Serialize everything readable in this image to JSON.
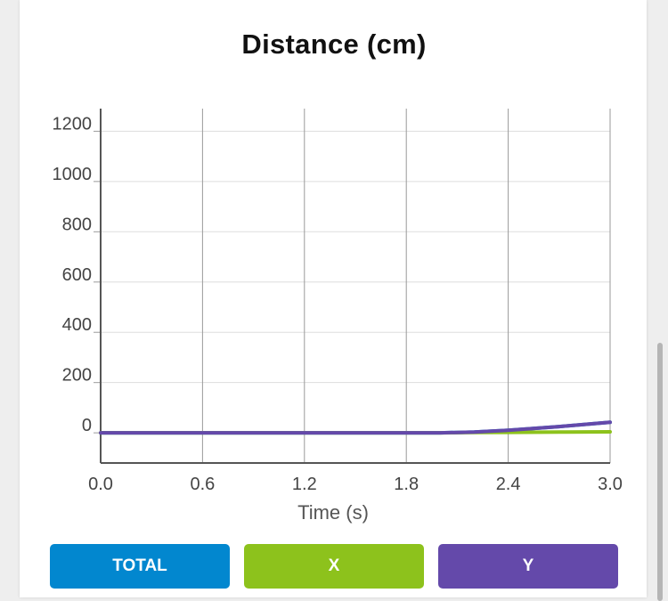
{
  "chart_data": {
    "type": "line",
    "title": "Distance (cm)",
    "xlabel": "Time (s)",
    "ylabel": "",
    "x_ticks": [
      "0.0",
      "0.6",
      "1.2",
      "1.8",
      "2.4",
      "3.0"
    ],
    "y_ticks": [
      "0",
      "200",
      "400",
      "600",
      "800",
      "1000",
      "1200"
    ],
    "xlim": [
      0,
      3.0
    ],
    "ylim": [
      -120,
      1290
    ],
    "grid": true,
    "x": [
      0,
      0.3,
      0.6,
      0.9,
      1.2,
      1.5,
      1.8,
      2.0,
      2.2,
      2.4,
      2.7,
      3.0
    ],
    "series": [
      {
        "name": "TOTAL",
        "color": "#0287cf",
        "values": [
          0,
          0,
          0,
          0,
          0,
          0,
          0,
          0,
          3,
          10,
          25,
          42
        ]
      },
      {
        "name": "X",
        "color": "#8dc21c",
        "values": [
          0,
          0,
          0,
          0,
          0,
          0,
          0,
          0,
          1,
          2,
          3,
          4
        ]
      },
      {
        "name": "Y",
        "color": "#6449aa",
        "values": [
          0,
          0,
          0,
          0,
          0,
          0,
          0,
          0,
          3,
          10,
          25,
          42
        ]
      }
    ]
  },
  "buttons": {
    "total": {
      "label": "TOTAL",
      "color": "#0287cf"
    },
    "x": {
      "label": "X",
      "color": "#8dc21c"
    },
    "y": {
      "label": "Y",
      "color": "#6449aa"
    }
  }
}
